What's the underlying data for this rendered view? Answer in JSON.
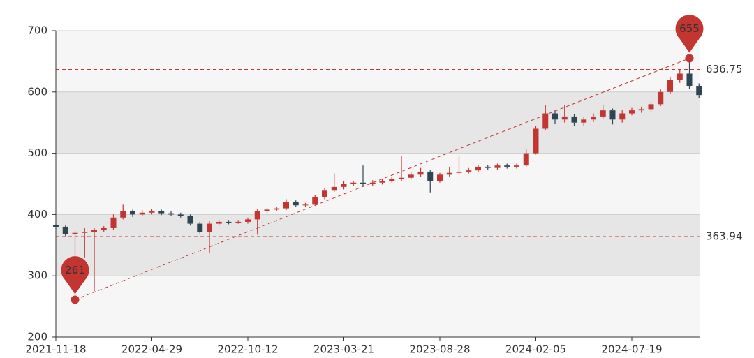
{
  "chart_data": {
    "type": "candlestick",
    "categories": [
      "2021-11-18",
      null,
      null,
      null,
      null,
      null,
      null,
      null,
      null,
      null,
      "2022-04-29",
      null,
      null,
      null,
      null,
      null,
      null,
      null,
      null,
      null,
      "2022-10-12",
      null,
      null,
      null,
      null,
      null,
      null,
      null,
      null,
      null,
      "2023-03-21",
      null,
      null,
      null,
      null,
      null,
      null,
      null,
      null,
      null,
      "2023-08-28",
      null,
      null,
      null,
      null,
      null,
      null,
      null,
      null,
      null,
      "2024-02-05",
      null,
      null,
      null,
      null,
      null,
      null,
      null,
      null,
      null,
      "2024-07-19",
      null,
      null,
      null,
      null,
      null,
      null,
      null
    ],
    "up_color": "#c23531",
    "down_color": "#2f4554",
    "series": [
      {
        "values": [
          {
            "open": 383,
            "close": 380,
            "low": 376,
            "high": 386
          },
          {
            "open": 380,
            "close": 368,
            "low": 365,
            "high": 382
          },
          {
            "open": 368,
            "close": 370,
            "low": 261,
            "high": 373
          },
          {
            "open": 370,
            "close": 372,
            "low": 330,
            "high": 378
          },
          {
            "open": 372,
            "close": 375,
            "low": 275,
            "high": 378
          },
          {
            "open": 375,
            "close": 378,
            "low": 372,
            "high": 381
          },
          {
            "open": 378,
            "close": 395,
            "low": 375,
            "high": 400
          },
          {
            "open": 395,
            "close": 405,
            "low": 392,
            "high": 416
          },
          {
            "open": 405,
            "close": 400,
            "low": 396,
            "high": 408
          },
          {
            "open": 400,
            "close": 403,
            "low": 397,
            "high": 407
          },
          {
            "open": 403,
            "close": 405,
            "low": 400,
            "high": 409
          },
          {
            "open": 405,
            "close": 402,
            "low": 399,
            "high": 408
          },
          {
            "open": 402,
            "close": 400,
            "low": 397,
            "high": 405
          },
          {
            "open": 400,
            "close": 398,
            "low": 395,
            "high": 403
          },
          {
            "open": 398,
            "close": 385,
            "low": 382,
            "high": 400
          },
          {
            "open": 385,
            "close": 372,
            "low": 369,
            "high": 388
          },
          {
            "open": 372,
            "close": 385,
            "low": 337,
            "high": 389
          },
          {
            "open": 385,
            "close": 388,
            "low": 383,
            "high": 391
          },
          {
            "open": 388,
            "close": 387,
            "low": 384,
            "high": 391
          },
          {
            "open": 387,
            "close": 388,
            "low": 385,
            "high": 391
          },
          {
            "open": 388,
            "close": 392,
            "low": 385,
            "high": 395
          },
          {
            "open": 392,
            "close": 405,
            "low": 367,
            "high": 409
          },
          {
            "open": 405,
            "close": 408,
            "low": 402,
            "high": 411
          },
          {
            "open": 408,
            "close": 410,
            "low": 405,
            "high": 413
          },
          {
            "open": 410,
            "close": 420,
            "low": 407,
            "high": 425
          },
          {
            "open": 420,
            "close": 415,
            "low": 412,
            "high": 423
          },
          {
            "open": 415,
            "close": 416,
            "low": 412,
            "high": 419
          },
          {
            "open": 416,
            "close": 428,
            "low": 414,
            "high": 432
          },
          {
            "open": 428,
            "close": 440,
            "low": 425,
            "high": 443
          },
          {
            "open": 440,
            "close": 445,
            "low": 437,
            "high": 467
          },
          {
            "open": 445,
            "close": 450,
            "low": 441,
            "high": 454
          },
          {
            "open": 450,
            "close": 452,
            "low": 447,
            "high": 455
          },
          {
            "open": 452,
            "close": 450,
            "low": 446,
            "high": 480
          },
          {
            "open": 450,
            "close": 452,
            "low": 447,
            "high": 456
          },
          {
            "open": 452,
            "close": 455,
            "low": 449,
            "high": 458
          },
          {
            "open": 455,
            "close": 458,
            "low": 452,
            "high": 461
          },
          {
            "open": 458,
            "close": 460,
            "low": 455,
            "high": 495
          },
          {
            "open": 460,
            "close": 465,
            "low": 457,
            "high": 470
          },
          {
            "open": 465,
            "close": 470,
            "low": 461,
            "high": 476
          },
          {
            "open": 470,
            "close": 455,
            "low": 436,
            "high": 473
          },
          {
            "open": 455,
            "close": 465,
            "low": 452,
            "high": 468
          },
          {
            "open": 465,
            "close": 468,
            "low": 462,
            "high": 478
          },
          {
            "open": 468,
            "close": 470,
            "low": 465,
            "high": 495
          },
          {
            "open": 470,
            "close": 472,
            "low": 467,
            "high": 476
          },
          {
            "open": 472,
            "close": 478,
            "low": 469,
            "high": 481
          },
          {
            "open": 478,
            "close": 476,
            "low": 473,
            "high": 481
          },
          {
            "open": 476,
            "close": 480,
            "low": 473,
            "high": 483
          },
          {
            "open": 480,
            "close": 478,
            "low": 475,
            "high": 483
          },
          {
            "open": 478,
            "close": 480,
            "low": 475,
            "high": 483
          },
          {
            "open": 480,
            "close": 500,
            "low": 478,
            "high": 506
          },
          {
            "open": 500,
            "close": 540,
            "low": 498,
            "high": 545
          },
          {
            "open": 540,
            "close": 565,
            "low": 537,
            "high": 578
          },
          {
            "open": 565,
            "close": 555,
            "low": 548,
            "high": 570
          },
          {
            "open": 555,
            "close": 560,
            "low": 550,
            "high": 578
          },
          {
            "open": 560,
            "close": 550,
            "low": 545,
            "high": 564
          },
          {
            "open": 550,
            "close": 555,
            "low": 545,
            "high": 560
          },
          {
            "open": 555,
            "close": 560,
            "low": 551,
            "high": 565
          },
          {
            "open": 560,
            "close": 570,
            "low": 556,
            "high": 578
          },
          {
            "open": 570,
            "close": 555,
            "low": 547,
            "high": 573
          },
          {
            "open": 555,
            "close": 565,
            "low": 550,
            "high": 570
          },
          {
            "open": 565,
            "close": 570,
            "low": 562,
            "high": 574
          },
          {
            "open": 570,
            "close": 572,
            "low": 566,
            "high": 576
          },
          {
            "open": 572,
            "close": 580,
            "low": 568,
            "high": 584
          },
          {
            "open": 580,
            "close": 600,
            "low": 577,
            "high": 604
          },
          {
            "open": 600,
            "close": 620,
            "low": 597,
            "high": 625
          },
          {
            "open": 620,
            "close": 630,
            "low": 615,
            "high": 636
          },
          {
            "open": 630,
            "close": 610,
            "low": 605,
            "high": 655
          },
          {
            "open": 610,
            "close": 595,
            "low": 590,
            "high": 614
          }
        ]
      }
    ],
    "mark_lines": [
      636.75,
      363.94
    ],
    "mark_color": "#c23531",
    "ylim": [
      200,
      700
    ],
    "yticks": [
      200,
      300,
      400,
      500,
      600,
      700
    ],
    "grid": true,
    "split_area": true
  }
}
